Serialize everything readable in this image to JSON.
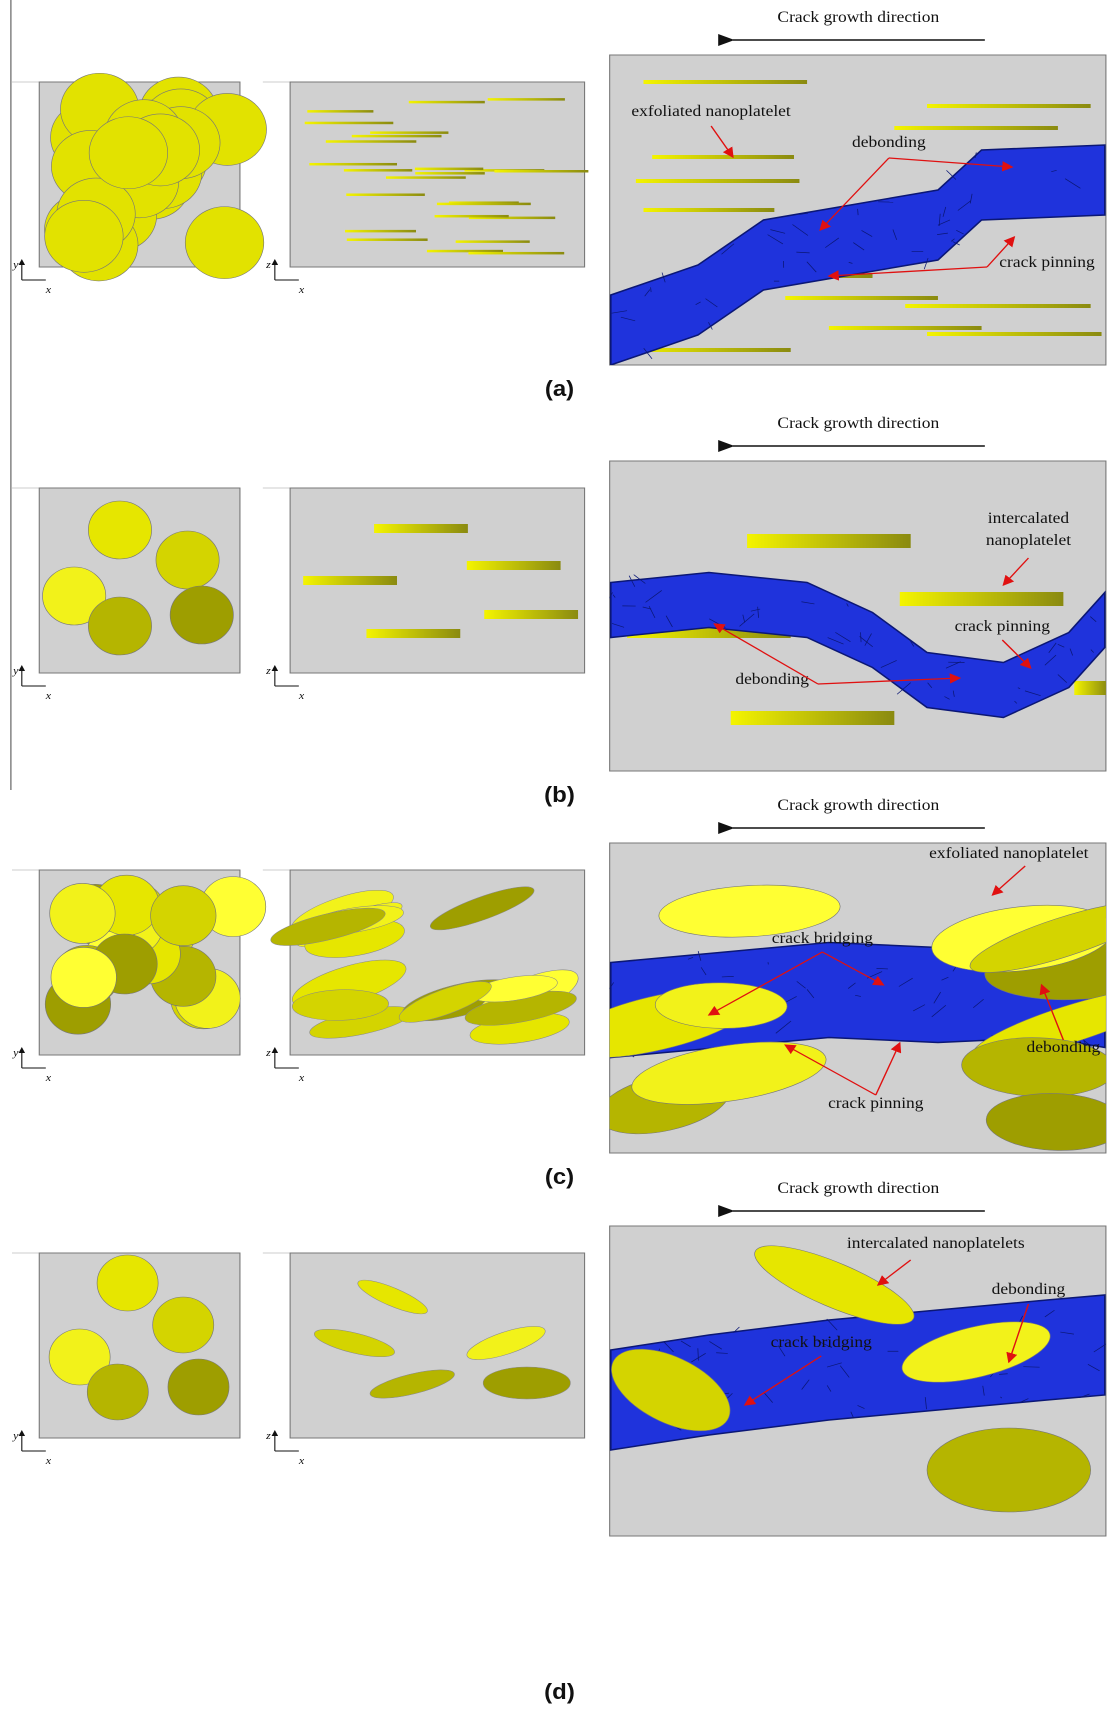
{
  "panels": [
    {
      "label": "(a)",
      "direction_label": "Crack growth direction",
      "plan_axes": [
        "y",
        "x"
      ],
      "side_axes": [
        "z",
        "x"
      ],
      "annotations": [
        {
          "lines": [
            "exfoliated nanoplatelet"
          ]
        },
        {
          "lines": [
            "debonding"
          ]
        },
        {
          "lines": [
            "crack pinning"
          ]
        }
      ]
    },
    {
      "label": "(b)",
      "direction_label": "Crack growth direction",
      "plan_axes": [
        "y",
        "x"
      ],
      "side_axes": [
        "z",
        "x"
      ],
      "annotations": [
        {
          "lines": [
            "intercalated",
            "nanoplatelet"
          ]
        },
        {
          "lines": [
            "crack pinning"
          ]
        },
        {
          "lines": [
            "debonding"
          ]
        }
      ]
    },
    {
      "label": "(c)",
      "direction_label": "Crack growth direction",
      "plan_axes": [
        "y",
        "x"
      ],
      "side_axes": [
        "z",
        "x"
      ],
      "annotations": [
        {
          "lines": [
            "exfoliated nanoplatelet"
          ]
        },
        {
          "lines": [
            "crack bridging"
          ]
        },
        {
          "lines": [
            "debonding"
          ]
        },
        {
          "lines": [
            "crack pinning"
          ]
        }
      ]
    },
    {
      "label": "(d)",
      "direction_label": "Crack growth direction",
      "plan_axes": [
        "y",
        "x"
      ],
      "side_axes": [
        "z",
        "x"
      ],
      "annotations": [
        {
          "lines": [
            "intercalated nanoplatelets"
          ]
        },
        {
          "lines": [
            "debonding"
          ]
        },
        {
          "lines": [
            "crack bridging"
          ]
        }
      ]
    }
  ]
}
